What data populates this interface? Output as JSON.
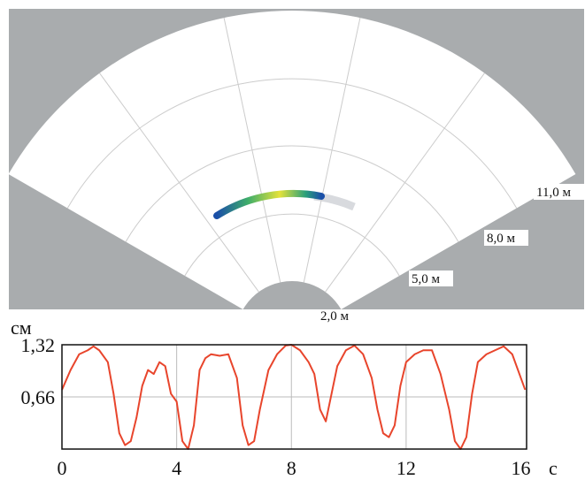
{
  "radar": {
    "range_labels": [
      "2,0 м",
      "5,0 м",
      "8,0 м",
      "11,0 м"
    ]
  },
  "chart_data": {
    "type": "line",
    "y_unit": "см",
    "x_unit": "с",
    "x": [
      0,
      0.3,
      0.6,
      0.9,
      1.1,
      1.3,
      1.6,
      1.8,
      2.0,
      2.2,
      2.4,
      2.6,
      2.8,
      3.0,
      3.2,
      3.4,
      3.6,
      3.8,
      4.0,
      4.2,
      4.4,
      4.6,
      4.8,
      5.0,
      5.2,
      5.5,
      5.8,
      6.1,
      6.3,
      6.5,
      6.7,
      6.9,
      7.2,
      7.5,
      7.8,
      8.0,
      8.3,
      8.6,
      8.8,
      9.0,
      9.2,
      9.4,
      9.6,
      9.9,
      10.2,
      10.5,
      10.8,
      11.0,
      11.2,
      11.4,
      11.6,
      11.8,
      12.0,
      12.3,
      12.6,
      12.9,
      13.2,
      13.5,
      13.7,
      13.9,
      14.1,
      14.3,
      14.5,
      14.8,
      15.1,
      15.4,
      15.7,
      16.0,
      16.15
    ],
    "series": [
      {
        "color": "#e8452c",
        "values": [
          0.75,
          1.0,
          1.2,
          1.25,
          1.3,
          1.25,
          1.1,
          0.7,
          0.2,
          0.05,
          0.1,
          0.4,
          0.8,
          1.0,
          0.95,
          1.1,
          1.05,
          0.7,
          0.6,
          0.1,
          0.0,
          0.3,
          1.0,
          1.15,
          1.2,
          1.18,
          1.2,
          0.9,
          0.3,
          0.05,
          0.1,
          0.5,
          1.0,
          1.2,
          1.31,
          1.32,
          1.25,
          1.1,
          0.95,
          0.5,
          0.35,
          0.7,
          1.05,
          1.25,
          1.31,
          1.2,
          0.9,
          0.5,
          0.2,
          0.15,
          0.3,
          0.8,
          1.1,
          1.2,
          1.25,
          1.25,
          0.95,
          0.5,
          0.1,
          0.0,
          0.15,
          0.7,
          1.1,
          1.2,
          1.25,
          1.3,
          1.2,
          0.9,
          0.75
        ]
      }
    ],
    "xlim": [
      0,
      16.2
    ],
    "ylim": [
      0,
      1.32
    ],
    "xticks": [
      0,
      4,
      8,
      12,
      16
    ],
    "yticks": [
      {
        "value": 0.66,
        "label": "0,66"
      },
      {
        "value": 1.32,
        "label": "1,32"
      }
    ],
    "grid": true
  }
}
